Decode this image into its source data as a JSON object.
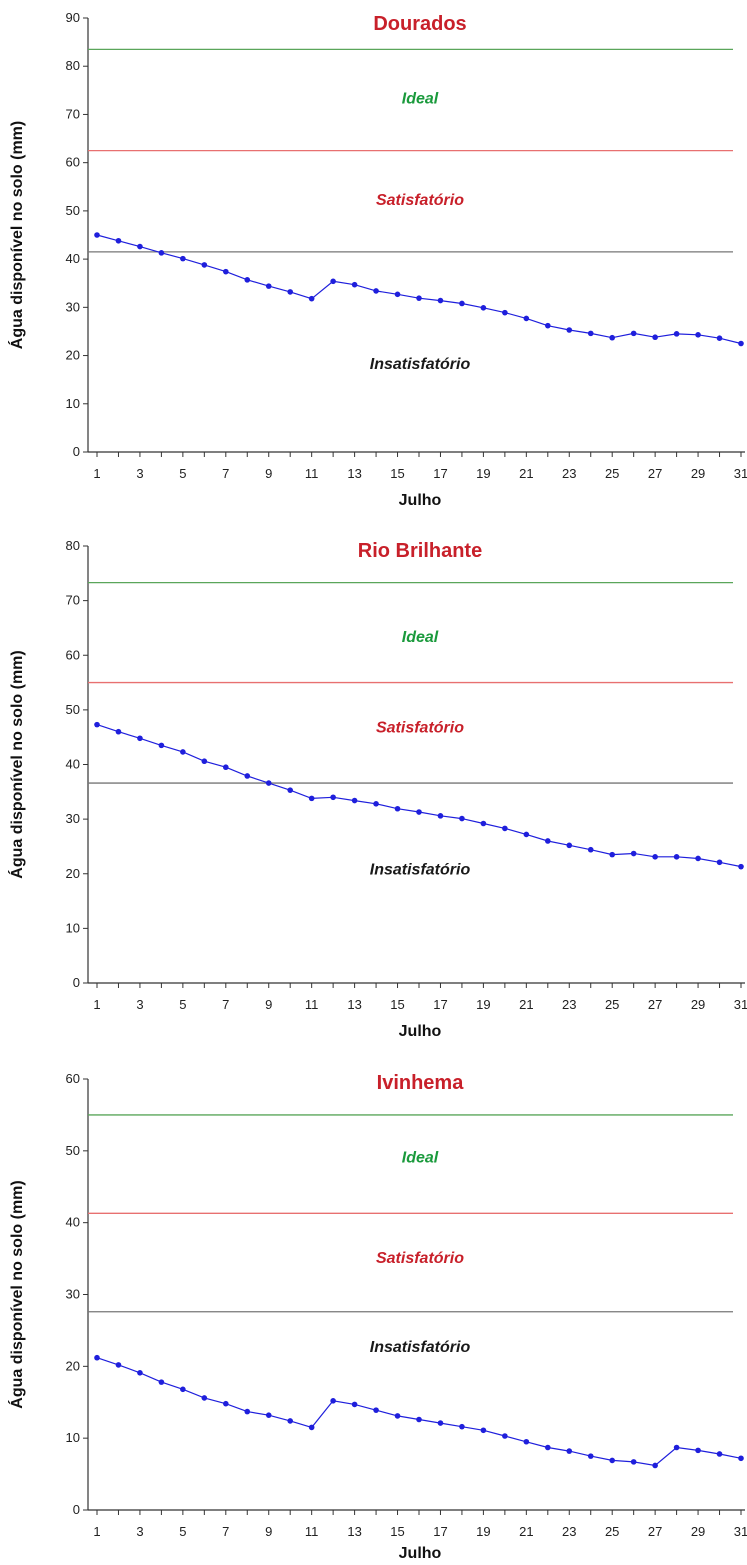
{
  "colors": {
    "title": "#c8202a",
    "ideal": "#1a9a3c",
    "satisfactory": "#c8202a",
    "unsatisfactory": "#1a1a1a",
    "ideal_line": "#5aa65a",
    "satisfactory_line": "#e87070",
    "unsatisfactory_line": "#777777",
    "series": "#1f1fdc",
    "axis": "#333333"
  },
  "chart_data": [
    {
      "type": "line",
      "title": "Dourados",
      "xlabel": "Julho",
      "ylabel": "Água disponível no solo (mm)",
      "xlim": [
        1,
        31
      ],
      "ylim": [
        0,
        90
      ],
      "y_ticks": [
        "0",
        "10",
        "20",
        "30",
        "40",
        "50",
        "60",
        "70",
        "80",
        "90"
      ],
      "x_tick_labels": [
        "1",
        "3",
        "5",
        "7",
        "9",
        "11",
        "13",
        "15",
        "17",
        "19",
        "21",
        "23",
        "25",
        "27",
        "29",
        "31"
      ],
      "x": [
        1,
        2,
        3,
        4,
        5,
        6,
        7,
        8,
        9,
        10,
        11,
        12,
        13,
        14,
        15,
        16,
        17,
        18,
        19,
        20,
        21,
        22,
        23,
        24,
        25,
        26,
        27,
        28,
        29,
        30,
        31
      ],
      "series": [
        {
          "values": [
            45.0,
            43.8,
            42.6,
            41.3,
            40.1,
            38.8,
            37.4,
            35.7,
            34.4,
            33.2,
            31.8,
            35.4,
            34.7,
            33.4,
            32.7,
            31.9,
            31.4,
            30.8,
            29.9,
            28.9,
            27.7,
            26.2,
            25.3,
            24.6,
            23.7,
            24.6,
            23.8,
            24.5,
            24.3,
            23.6,
            22.5
          ]
        }
      ],
      "thresholds": [
        {
          "kind": "ideal",
          "value": 83.5
        },
        {
          "kind": "satisfactory",
          "value": 62.5
        },
        {
          "kind": "unsatisfactory",
          "value": 41.5
        }
      ],
      "zone_labels": [
        {
          "kind": "ideal",
          "text": "Ideal",
          "y": 73.5
        },
        {
          "kind": "satisfactory",
          "text": "Satisfatório",
          "y": 52.5
        },
        {
          "kind": "unsatisfactory",
          "text": "Insatisfatório",
          "y": 18.5
        }
      ]
    },
    {
      "type": "line",
      "title": "Rio Brilhante",
      "xlabel": "Julho",
      "ylabel": "Água disponível no solo (mm)",
      "xlim": [
        1,
        31
      ],
      "ylim": [
        0,
        80
      ],
      "y_ticks": [
        "0",
        "10",
        "20",
        "30",
        "40",
        "50",
        "60",
        "70",
        "80"
      ],
      "x_tick_labels": [
        "1",
        "3",
        "5",
        "7",
        "9",
        "11",
        "13",
        "15",
        "17",
        "19",
        "21",
        "23",
        "25",
        "27",
        "29",
        "31"
      ],
      "x": [
        1,
        2,
        3,
        4,
        5,
        6,
        7,
        8,
        9,
        10,
        11,
        12,
        13,
        14,
        15,
        16,
        17,
        18,
        19,
        20,
        21,
        22,
        23,
        24,
        25,
        26,
        27,
        28,
        29,
        30,
        31
      ],
      "series": [
        {
          "values": [
            47.3,
            46.0,
            44.8,
            43.5,
            42.3,
            40.6,
            39.5,
            37.9,
            36.6,
            35.3,
            33.8,
            34.0,
            33.4,
            32.8,
            31.9,
            31.3,
            30.6,
            30.1,
            29.2,
            28.3,
            27.2,
            26.0,
            25.2,
            24.4,
            23.5,
            23.7,
            23.1,
            23.1,
            22.8,
            22.1,
            21.3
          ]
        }
      ],
      "thresholds": [
        {
          "kind": "ideal",
          "value": 73.3
        },
        {
          "kind": "satisfactory",
          "value": 55.0
        },
        {
          "kind": "unsatisfactory",
          "value": 36.6
        }
      ],
      "zone_labels": [
        {
          "kind": "ideal",
          "text": "Ideal",
          "y": 63.5
        },
        {
          "kind": "satisfactory",
          "text": "Satisfatório",
          "y": 47.0
        },
        {
          "kind": "unsatisfactory",
          "text": "Insatisfatório",
          "y": 21.0
        }
      ]
    },
    {
      "type": "line",
      "title": "Ivinhema",
      "xlabel": "Julho",
      "ylabel": "Água disponível no solo (mm)",
      "xlim": [
        1,
        31
      ],
      "ylim": [
        0,
        60
      ],
      "y_ticks": [
        "0",
        "10",
        "20",
        "30",
        "40",
        "50",
        "60"
      ],
      "x_tick_labels": [
        "1",
        "3",
        "5",
        "7",
        "9",
        "11",
        "13",
        "15",
        "17",
        "19",
        "21",
        "23",
        "25",
        "27",
        "29",
        "31"
      ],
      "x": [
        1,
        2,
        3,
        4,
        5,
        6,
        7,
        8,
        9,
        10,
        11,
        12,
        13,
        14,
        15,
        16,
        17,
        18,
        19,
        20,
        21,
        22,
        23,
        24,
        25,
        26,
        27,
        28,
        29,
        30,
        31
      ],
      "series": [
        {
          "values": [
            21.2,
            20.2,
            19.1,
            17.8,
            16.8,
            15.6,
            14.8,
            13.7,
            13.2,
            12.4,
            11.5,
            15.2,
            14.7,
            13.9,
            13.1,
            12.6,
            12.1,
            11.6,
            11.1,
            10.3,
            9.5,
            8.7,
            8.2,
            7.5,
            6.9,
            6.7,
            6.2,
            8.7,
            8.3,
            7.8,
            7.2
          ]
        }
      ],
      "thresholds": [
        {
          "kind": "ideal",
          "value": 55.0
        },
        {
          "kind": "satisfactory",
          "value": 41.3
        },
        {
          "kind": "unsatisfactory",
          "value": 27.6
        }
      ],
      "zone_labels": [
        {
          "kind": "ideal",
          "text": "Ideal",
          "y": 49.2
        },
        {
          "kind": "satisfactory",
          "text": "Satisfatório",
          "y": 35.2
        },
        {
          "kind": "unsatisfactory",
          "text": "Insatisfatório",
          "y": 22.8
        }
      ]
    }
  ]
}
